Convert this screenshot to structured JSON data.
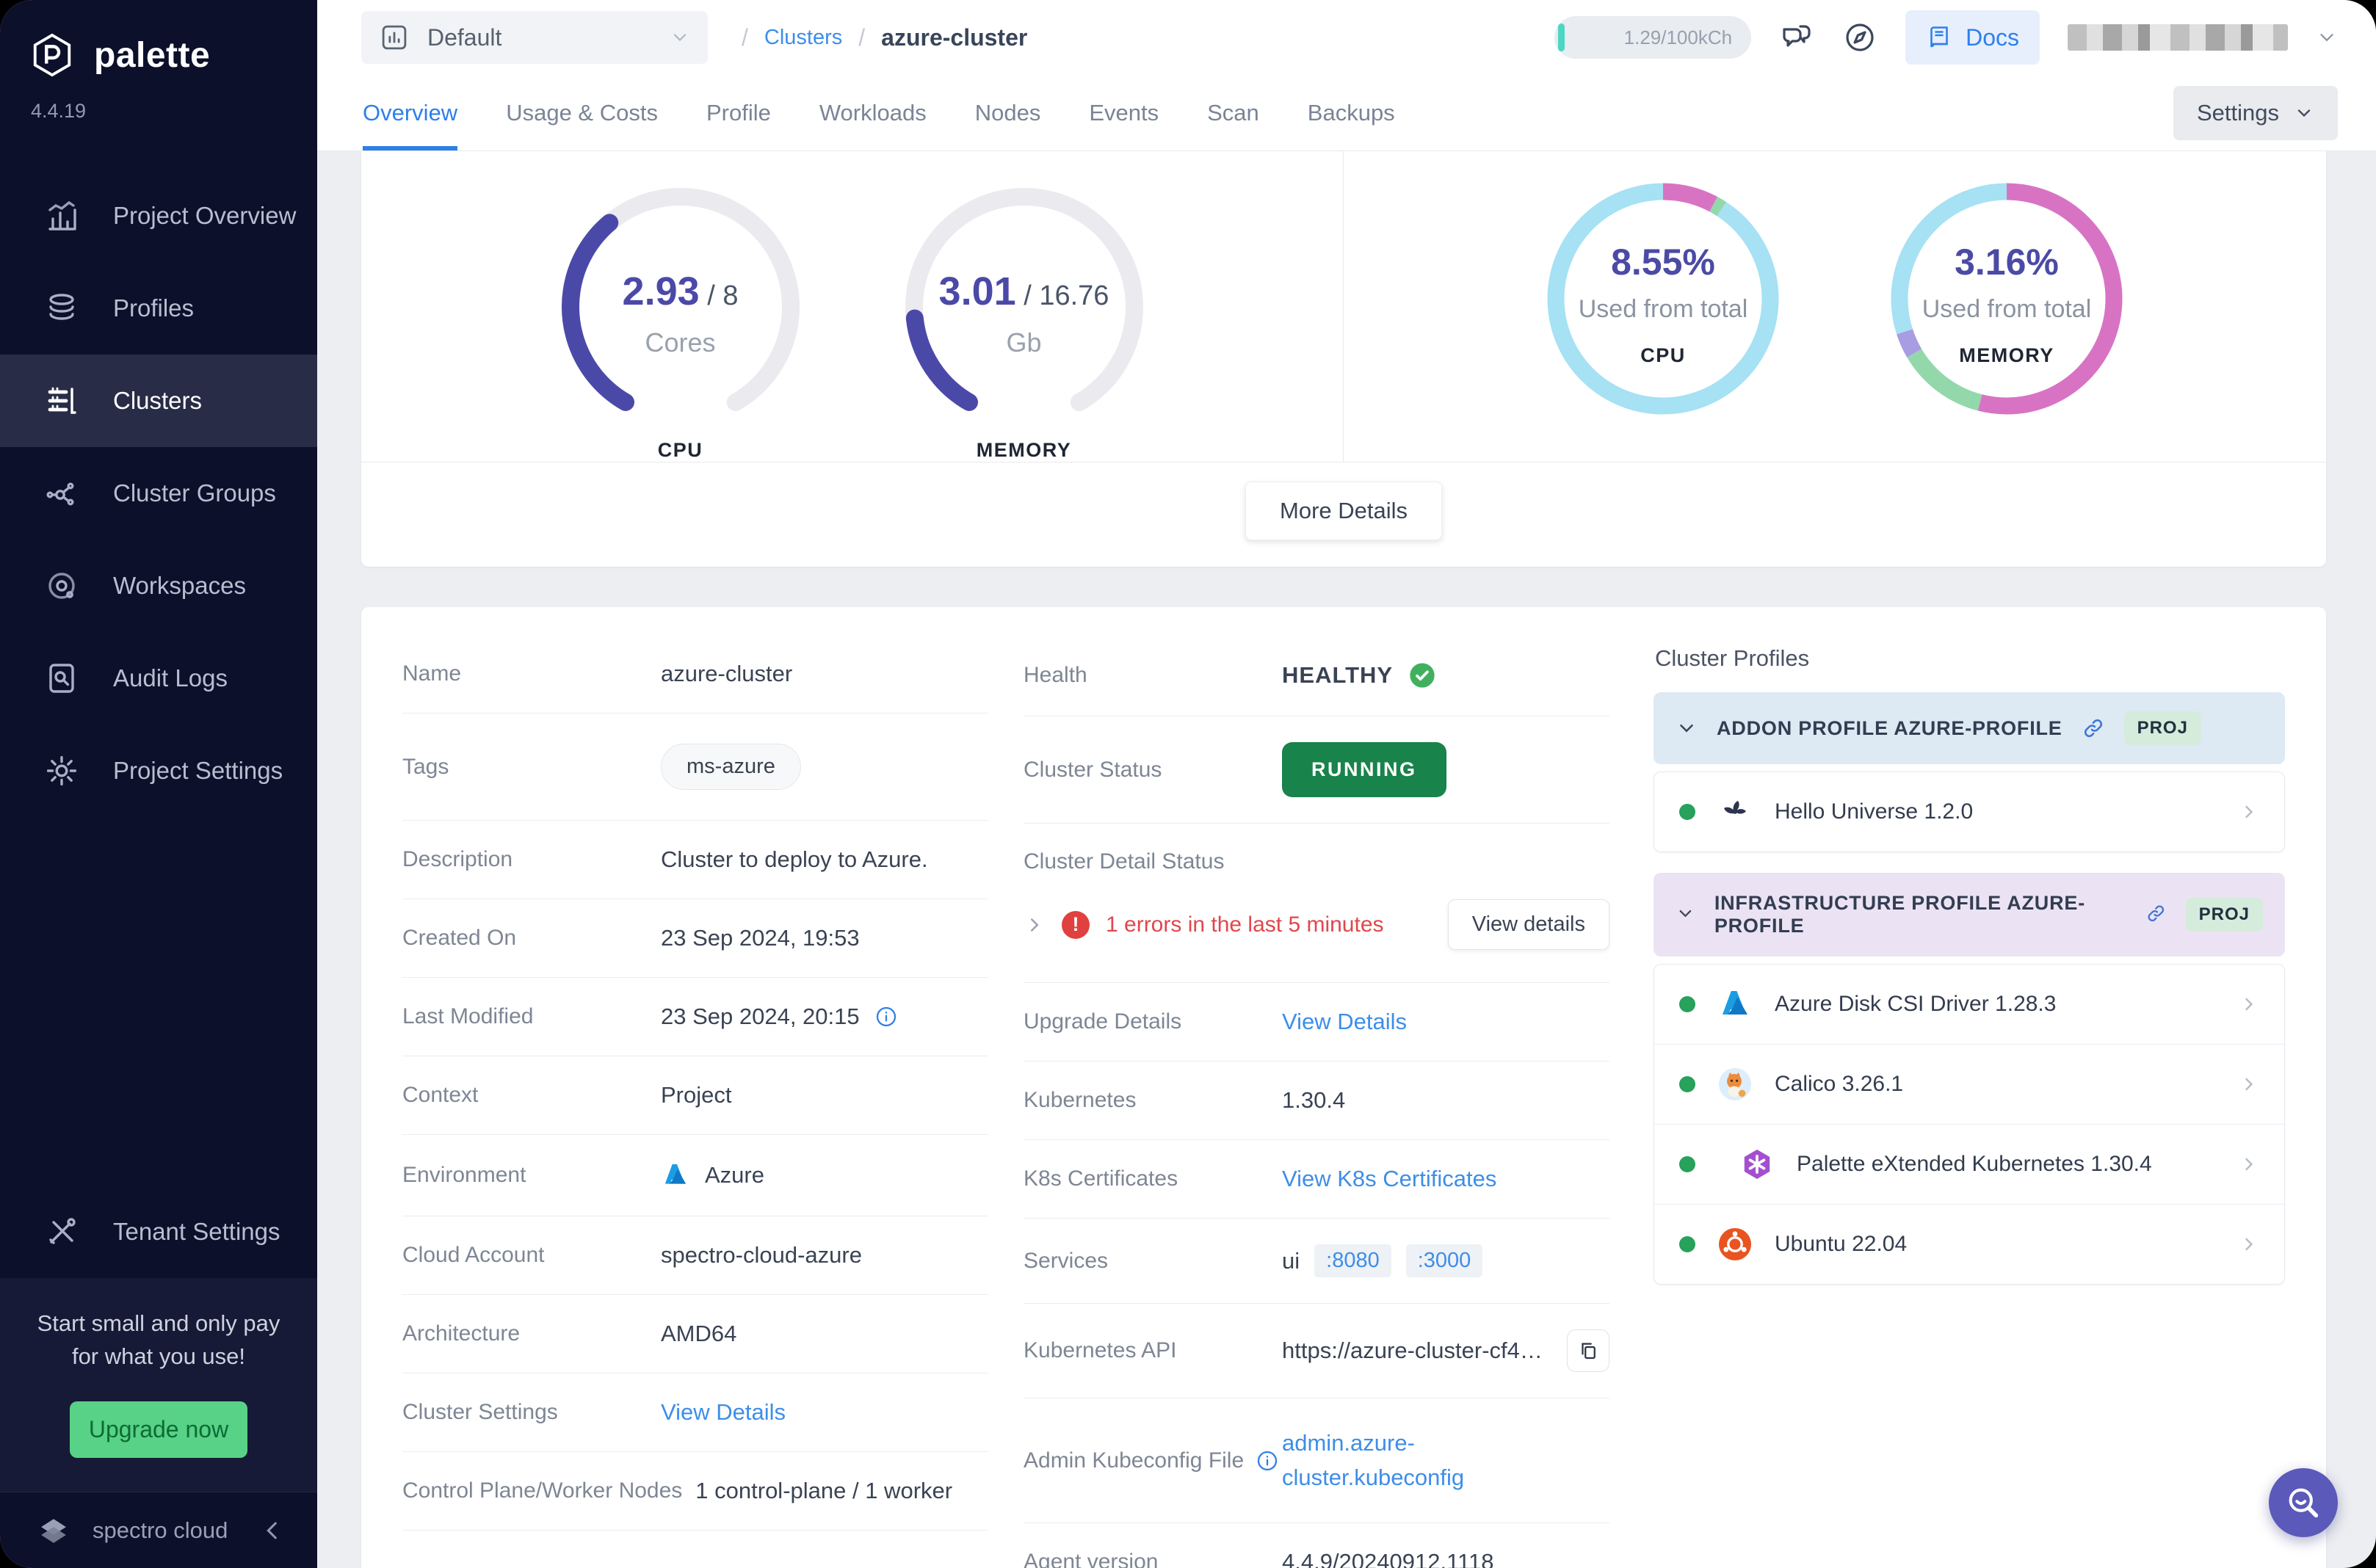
{
  "app": {
    "brand": "palette",
    "version": "4.4.19"
  },
  "colors": {
    "accent_blue": "#2e7fe8",
    "gauge_purple": "#4b49a8",
    "success_green": "#18834b",
    "healthy_green": "#41ad58",
    "error_red": "#e0474c",
    "donut_pink": "#d873c4",
    "donut_cyan": "#a6e1f4",
    "donut_green": "#93d8ab",
    "donut_violet": "#a89ce2"
  },
  "sidebar": {
    "items": [
      {
        "label": "Project Overview",
        "icon": "chart-bars"
      },
      {
        "label": "Profiles",
        "icon": "layers"
      },
      {
        "label": "Clusters",
        "icon": "server-list"
      },
      {
        "label": "Cluster Groups",
        "icon": "node-network"
      },
      {
        "label": "Workspaces",
        "icon": "orbit"
      },
      {
        "label": "Audit Logs",
        "icon": "doc-search"
      },
      {
        "label": "Project Settings",
        "icon": "gear"
      }
    ],
    "tenant_settings_label": "Tenant Settings",
    "promo": {
      "text": "Start small and only pay for what you use!",
      "button_label": "Upgrade now"
    },
    "footer_brand": "spectro cloud"
  },
  "topbar": {
    "project_selector": "Default",
    "breadcrumb": {
      "separator": "/",
      "link": "Clusters",
      "current": "azure-cluster"
    },
    "credits": "1.29/100kCh",
    "docs_label": "Docs"
  },
  "tabs": {
    "items": [
      "Overview",
      "Usage & Costs",
      "Profile",
      "Workloads",
      "Nodes",
      "Events",
      "Scan",
      "Backups"
    ],
    "settings_button": "Settings"
  },
  "usage_card": {
    "more_details_button": "More Details",
    "gauges": [
      {
        "value": "2.93",
        "total_display": "/ 8",
        "unit": "Cores",
        "label": "CPU",
        "fraction": 0.366,
        "color": "#4b49a8"
      },
      {
        "value": "3.01",
        "total_display": "/ 16.76",
        "unit": "Gb",
        "label": "MEMORY",
        "fraction": 0.18,
        "color": "#4b49a8"
      }
    ],
    "donuts": [
      {
        "percent": "8.55%",
        "caption": "Used from total",
        "label": "CPU",
        "segments": [
          {
            "fraction": 0.078,
            "color": "#d873c4"
          },
          {
            "fraction": 0.014,
            "color": "#93d8ab"
          },
          {
            "fraction": 0.908,
            "color": "#a6e1f4"
          }
        ]
      },
      {
        "percent": "3.16%",
        "caption": "Used from total",
        "label": "MEMORY",
        "segments": [
          {
            "fraction": 0.54,
            "color": "#d873c4"
          },
          {
            "fraction": 0.125,
            "color": "#93d8ab"
          },
          {
            "fraction": 0.035,
            "color": "#a89ce2"
          },
          {
            "fraction": 0.3,
            "color": "#a6e1f4"
          }
        ]
      }
    ]
  },
  "details": {
    "name": {
      "label": "Name",
      "value": "azure-cluster"
    },
    "tags": {
      "label": "Tags",
      "value": "ms-azure"
    },
    "description": {
      "label": "Description",
      "value": "Cluster to deploy to Azure."
    },
    "created": {
      "label": "Created On",
      "value": "23 Sep 2024, 19:53"
    },
    "modified": {
      "label": "Last Modified",
      "value": "23 Sep 2024, 20:15"
    },
    "context": {
      "label": "Context",
      "value": "Project"
    },
    "environment": {
      "label": "Environment",
      "value": "Azure"
    },
    "cloud_account": {
      "label": "Cloud Account",
      "value": "spectro-cloud-azure"
    },
    "architecture": {
      "label": "Architecture",
      "value": "AMD64"
    },
    "cluster_settings": {
      "label": "Cluster Settings",
      "value": "View Details"
    },
    "nodes": {
      "label": "Control Plane/Worker Nodes",
      "value": "1 control-plane / 1 worker"
    }
  },
  "status": {
    "health": {
      "label": "Health",
      "value": "HEALTHY"
    },
    "cluster_status": {
      "label": "Cluster Status",
      "value": "RUNNING"
    },
    "detail_status": {
      "label": "Cluster Detail Status",
      "error_text": "1 errors in the last 5 minutes",
      "button": "View details"
    },
    "upgrade": {
      "label": "Upgrade Details",
      "value": "View Details"
    },
    "kubernetes": {
      "label": "Kubernetes",
      "value": "1.30.4"
    },
    "certificates": {
      "label": "K8s Certificates",
      "value": "View K8s Certificates"
    },
    "services": {
      "label": "Services",
      "name": "ui",
      "ports": [
        ":8080",
        ":3000"
      ]
    },
    "api": {
      "label": "Kubernetes API",
      "value": "https://azure-cluster-cf42…"
    },
    "kubeconfig": {
      "label": "Admin Kubeconfig File",
      "value": "admin.azure-cluster.kubeconfig"
    },
    "agent": {
      "label": "Agent version",
      "value": "4.4.9/20240912.1118"
    }
  },
  "profiles": {
    "title": "Cluster Profiles",
    "groups": [
      {
        "header": "ADDON PROFILE AZURE-PROFILE",
        "badge": "PROJ",
        "items": [
          {
            "name": "Hello Universe 1.2.0",
            "icon": "hello-universe"
          }
        ]
      },
      {
        "header": "INFRASTRUCTURE PROFILE AZURE-PROFILE",
        "badge": "PROJ",
        "items": [
          {
            "name": "Azure Disk CSI Driver 1.28.3",
            "icon": "azure"
          },
          {
            "name": "Calico 3.26.1",
            "icon": "calico"
          },
          {
            "name": "Palette eXtended Kubernetes 1.30.4",
            "icon": "pxk"
          },
          {
            "name": "Ubuntu 22.04",
            "icon": "ubuntu"
          }
        ]
      }
    ]
  }
}
